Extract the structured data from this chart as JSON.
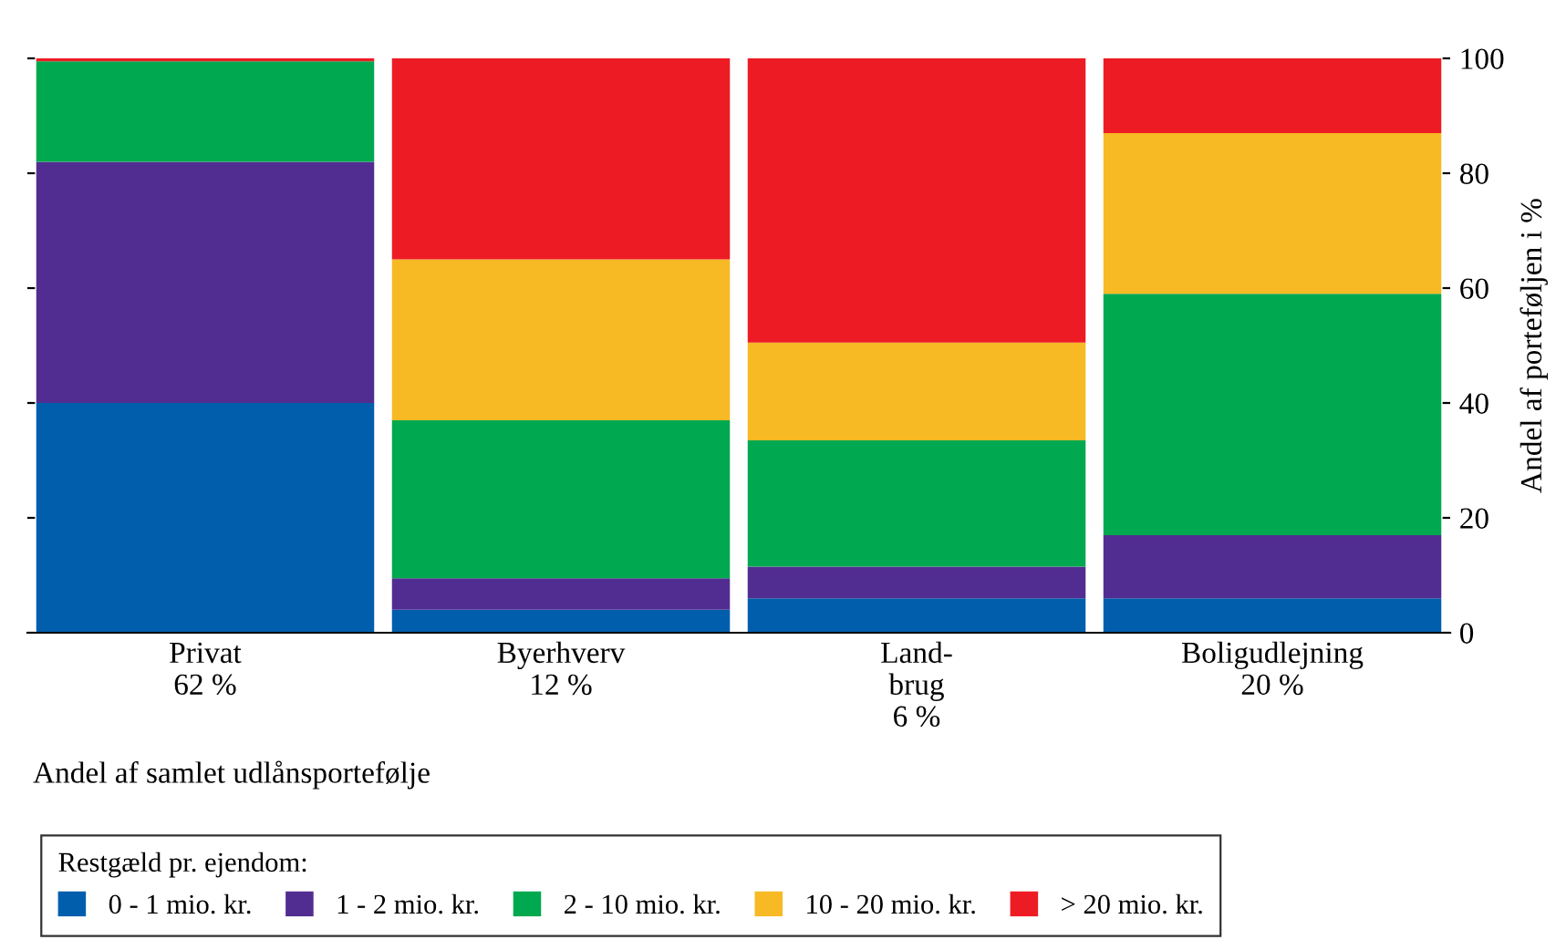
{
  "chart_data": {
    "type": "bar",
    "stacked": true,
    "categories": [
      "Privat\n62 %",
      "Byerhverv\n12 %",
      "Land-\nbrug\n6 %",
      "Boligudlejning\n20 %"
    ],
    "series": [
      {
        "name": "0 - 1 mio. kr.",
        "color": "#005eac",
        "values": [
          40,
          4,
          6,
          6
        ]
      },
      {
        "name": "1 - 2 mio. kr.",
        "color": "#522d91",
        "values": [
          42,
          5.5,
          5.5,
          11
        ]
      },
      {
        "name": "2 - 10 mio. kr.",
        "color": "#00a94f",
        "values": [
          17.5,
          27.5,
          22,
          42
        ]
      },
      {
        "name": "10 - 20 mio. kr.",
        "color": "#f7b924",
        "values": [
          0,
          28,
          17,
          28
        ]
      },
      {
        "name": "> 20 mio. kr.",
        "color": "#ed1c24",
        "values": [
          0.5,
          35,
          49.5,
          13
        ]
      }
    ],
    "ylim": [
      0,
      100
    ],
    "yticks": [
      0,
      20,
      40,
      60,
      80,
      100
    ],
    "ylabel": "Andel af porteføljen i %",
    "xlabel": "Andel af samlet udlånsportefølje",
    "legend_title": "Restgæld pr. ejendom:",
    "legend": "bottom",
    "grid": false
  }
}
